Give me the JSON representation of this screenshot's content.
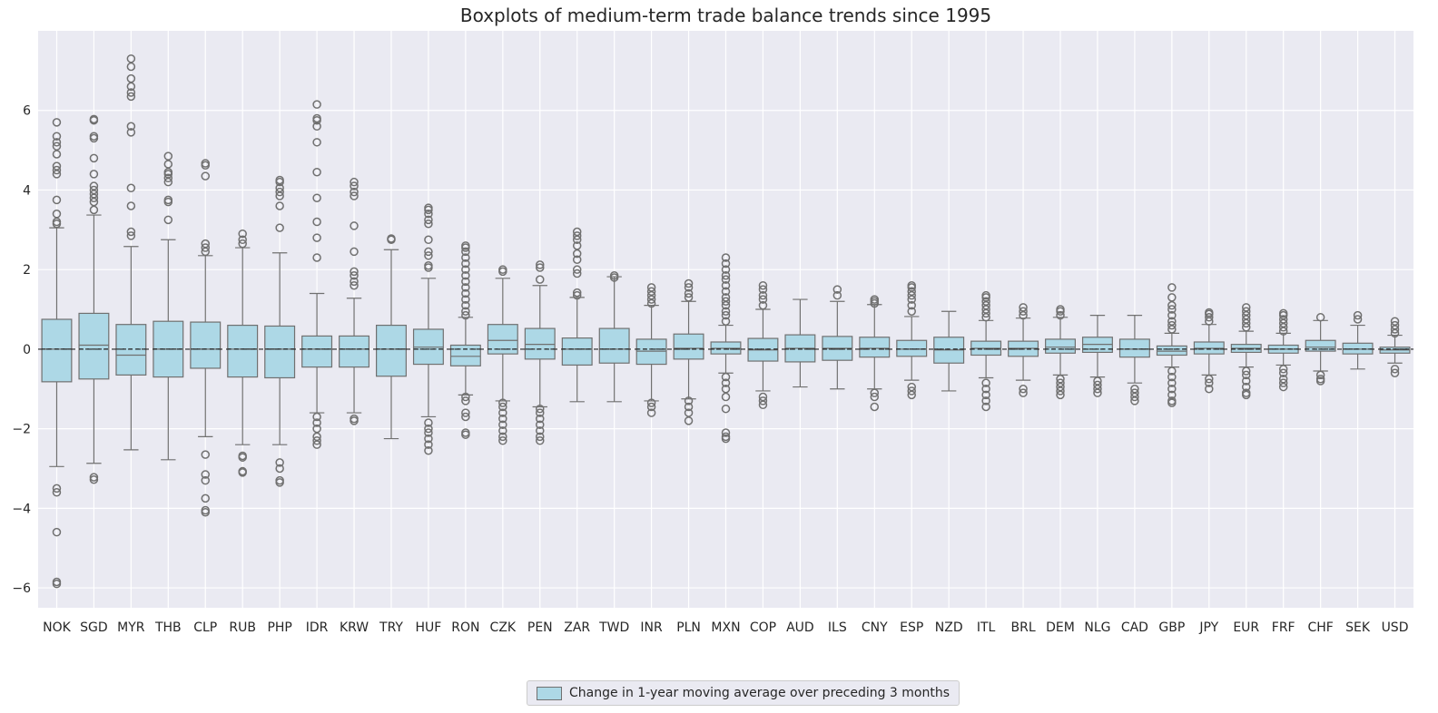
{
  "chart_data": {
    "type": "box",
    "title": "Boxplots of medium-term trade balance trends since 1995",
    "xlabel": "",
    "ylabel": "",
    "ylim": [
      -6.5,
      8.0
    ],
    "yticks": [
      -6,
      -4,
      -2,
      0,
      2,
      4,
      6
    ],
    "ytick_labels": [
      "−6",
      "−4",
      "−2",
      "0",
      "2",
      "4",
      "6"
    ],
    "grid": true,
    "legend_position": "bottom-center",
    "reference_line": 0,
    "colors": {
      "background": "#eaeaf2",
      "box_fill": "#add8e6",
      "box_edge": "#707070",
      "grid": "#ffffff",
      "text": "#262626"
    },
    "series_name": "Change in 1-year moving average over preceding 3 months",
    "categories": [
      "NOK",
      "SGD",
      "MYR",
      "THB",
      "CLP",
      "RUB",
      "PHP",
      "IDR",
      "KRW",
      "TRY",
      "HUF",
      "RON",
      "CZK",
      "PEN",
      "ZAR",
      "TWD",
      "INR",
      "PLN",
      "MXN",
      "COP",
      "AUD",
      "ILS",
      "CNY",
      "ESP",
      "NZD",
      "ITL",
      "BRL",
      "DEM",
      "NLG",
      "CAD",
      "GBP",
      "JPY",
      "EUR",
      "FRF",
      "CHF",
      "SEK",
      "USD"
    ],
    "boxes": [
      {
        "q1": -0.82,
        "median": 0.0,
        "q3": 0.75,
        "mean": 0.0,
        "whislo": -2.95,
        "whishi": 3.05,
        "fliers": [
          3.15,
          3.2,
          3.4,
          3.75,
          4.4,
          4.5,
          4.6,
          4.9,
          5.1,
          5.2,
          5.35,
          5.7,
          -3.5,
          -3.6,
          -4.6,
          -5.85,
          -5.9
        ]
      },
      {
        "q1": -0.75,
        "median": 0.1,
        "q3": 0.9,
        "mean": 0.0,
        "whislo": -2.87,
        "whishi": 3.37,
        "fliers": [
          3.5,
          3.7,
          3.8,
          3.9,
          4.0,
          4.1,
          4.4,
          4.8,
          5.3,
          5.35,
          5.75,
          5.78,
          -3.22,
          -3.28
        ]
      },
      {
        "q1": -0.65,
        "median": -0.15,
        "q3": 0.62,
        "mean": 0.0,
        "whislo": -2.53,
        "whishi": 2.58,
        "fliers": [
          2.85,
          2.95,
          3.6,
          4.05,
          5.45,
          5.6,
          6.35,
          6.45,
          6.6,
          6.8,
          7.1,
          7.3
        ]
      },
      {
        "q1": -0.7,
        "median": 0.0,
        "q3": 0.7,
        "mean": 0.0,
        "whislo": -2.78,
        "whishi": 2.75,
        "fliers": [
          3.25,
          3.7,
          3.75,
          4.2,
          4.3,
          4.4,
          4.45,
          4.65,
          4.85
        ]
      },
      {
        "q1": -0.48,
        "median": 0.0,
        "q3": 0.68,
        "mean": 0.0,
        "whislo": -2.2,
        "whishi": 2.35,
        "fliers": [
          2.45,
          2.55,
          2.65,
          4.35,
          4.62,
          4.67,
          -2.65,
          -3.15,
          -3.3,
          -3.75,
          -4.05,
          -4.1
        ]
      },
      {
        "q1": -0.7,
        "median": 0.0,
        "q3": 0.6,
        "mean": 0.0,
        "whislo": -2.4,
        "whishi": 2.55,
        "fliers": [
          2.65,
          2.75,
          2.9,
          -2.68,
          -2.72,
          -3.07,
          -3.1
        ]
      },
      {
        "q1": -0.72,
        "median": 0.0,
        "q3": 0.58,
        "mean": 0.0,
        "whislo": -2.4,
        "whishi": 2.42,
        "fliers": [
          3.05,
          3.6,
          3.85,
          3.95,
          4.05,
          4.2,
          4.25,
          -2.85,
          -3.0,
          -3.3,
          -3.35
        ]
      },
      {
        "q1": -0.45,
        "median": 0.0,
        "q3": 0.33,
        "mean": 0.0,
        "whislo": -1.6,
        "whishi": 1.4,
        "fliers": [
          2.3,
          2.8,
          3.2,
          3.8,
          4.45,
          5.2,
          5.6,
          5.75,
          5.8,
          6.15,
          -1.7,
          -1.85,
          -2.0,
          -2.2,
          -2.3,
          -2.4
        ]
      },
      {
        "q1": -0.45,
        "median": 0.0,
        "q3": 0.33,
        "mean": 0.0,
        "whislo": -1.6,
        "whishi": 1.28,
        "fliers": [
          1.6,
          1.7,
          1.85,
          1.95,
          2.45,
          3.1,
          3.85,
          3.95,
          4.1,
          4.2,
          -1.75,
          -1.8
        ]
      },
      {
        "q1": -0.68,
        "median": 0.0,
        "q3": 0.6,
        "mean": 0.0,
        "whislo": -2.25,
        "whishi": 2.5,
        "fliers": [
          2.75,
          2.78
        ]
      },
      {
        "q1": -0.38,
        "median": 0.05,
        "q3": 0.5,
        "mean": 0.0,
        "whislo": -1.7,
        "whishi": 1.78,
        "fliers": [
          2.05,
          2.1,
          2.35,
          2.45,
          2.75,
          3.15,
          3.25,
          3.4,
          3.5,
          3.55,
          -1.85,
          -2.0,
          -2.1,
          -2.25,
          -2.4,
          -2.55
        ]
      },
      {
        "q1": -0.42,
        "median": -0.18,
        "q3": 0.1,
        "mean": 0.0,
        "whislo": -1.15,
        "whishi": 0.8,
        "fliers": [
          0.85,
          0.95,
          1.1,
          1.25,
          1.4,
          1.55,
          1.7,
          1.85,
          2.0,
          2.15,
          2.3,
          2.45,
          2.55,
          2.6,
          -1.2,
          -1.3,
          -1.6,
          -1.7,
          -2.1,
          -2.15
        ]
      },
      {
        "q1": -0.12,
        "median": 0.22,
        "q3": 0.62,
        "mean": 0.0,
        "whislo": -1.3,
        "whishi": 1.78,
        "fliers": [
          1.95,
          2.0,
          -1.35,
          -1.45,
          -1.6,
          -1.75,
          -1.9,
          -2.05,
          -2.2,
          -2.3
        ]
      },
      {
        "q1": -0.25,
        "median": 0.12,
        "q3": 0.52,
        "mean": 0.0,
        "whislo": -1.45,
        "whishi": 1.6,
        "fliers": [
          1.75,
          2.05,
          2.12,
          -1.5,
          -1.6,
          -1.75,
          -1.9,
          -2.05,
          -2.2,
          -2.3
        ]
      },
      {
        "q1": -0.4,
        "median": 0.0,
        "q3": 0.28,
        "mean": 0.0,
        "whislo": -1.32,
        "whishi": 1.3,
        "fliers": [
          1.35,
          1.42,
          1.9,
          2.0,
          2.25,
          2.4,
          2.6,
          2.75,
          2.85,
          2.95
        ]
      },
      {
        "q1": -0.35,
        "median": 0.0,
        "q3": 0.52,
        "mean": 0.0,
        "whislo": -1.32,
        "whishi": 1.82,
        "fliers": [
          1.8,
          1.85
        ]
      },
      {
        "q1": -0.38,
        "median": -0.05,
        "q3": 0.25,
        "mean": 0.0,
        "whislo": -1.3,
        "whishi": 1.1,
        "fliers": [
          1.15,
          1.25,
          1.35,
          1.45,
          1.55,
          -1.35,
          -1.45,
          -1.6
        ]
      },
      {
        "q1": -0.25,
        "median": 0.02,
        "q3": 0.38,
        "mean": 0.0,
        "whislo": -1.25,
        "whishi": 1.2,
        "fliers": [
          1.3,
          1.4,
          1.55,
          1.65,
          -1.3,
          -1.45,
          -1.6,
          -1.8
        ]
      },
      {
        "q1": -0.12,
        "median": 0.02,
        "q3": 0.18,
        "mean": 0.0,
        "whislo": -0.6,
        "whishi": 0.6,
        "fliers": [
          0.7,
          0.85,
          0.95,
          1.1,
          1.2,
          1.3,
          1.45,
          1.6,
          1.75,
          1.85,
          2.0,
          2.15,
          2.3,
          -0.7,
          -0.85,
          -1.0,
          -1.2,
          -1.5,
          -2.1,
          -2.2,
          -2.25
        ]
      },
      {
        "q1": -0.3,
        "median": -0.02,
        "q3": 0.27,
        "mean": 0.0,
        "whislo": -1.05,
        "whishi": 1.0,
        "fliers": [
          1.1,
          1.25,
          1.35,
          1.5,
          1.6,
          -1.2,
          -1.3,
          -1.4
        ]
      },
      {
        "q1": -0.32,
        "median": 0.02,
        "q3": 0.36,
        "mean": 0.0,
        "whislo": -0.95,
        "whishi": 1.25,
        "fliers": []
      },
      {
        "q1": -0.28,
        "median": 0.02,
        "q3": 0.32,
        "mean": 0.0,
        "whislo": -1.0,
        "whishi": 1.2,
        "fliers": [
          1.35,
          1.5
        ]
      },
      {
        "q1": -0.2,
        "median": 0.02,
        "q3": 0.3,
        "mean": 0.0,
        "whislo": -1.0,
        "whishi": 1.12,
        "fliers": [
          1.15,
          1.2,
          1.25,
          -1.1,
          -1.2,
          -1.45
        ]
      },
      {
        "q1": -0.18,
        "median": 0.0,
        "q3": 0.22,
        "mean": 0.0,
        "whislo": -0.78,
        "whishi": 0.82,
        "fliers": [
          0.95,
          1.1,
          1.25,
          1.35,
          1.45,
          1.55,
          1.6,
          -0.95,
          -1.05,
          -1.15
        ]
      },
      {
        "q1": -0.35,
        "median": -0.02,
        "q3": 0.3,
        "mean": 0.0,
        "whislo": -1.05,
        "whishi": 0.95,
        "fliers": []
      },
      {
        "q1": -0.15,
        "median": 0.02,
        "q3": 0.2,
        "mean": 0.0,
        "whislo": -0.72,
        "whishi": 0.72,
        "fliers": [
          0.8,
          0.9,
          1.0,
          1.1,
          1.2,
          1.3,
          1.35,
          -0.85,
          -1.0,
          -1.15,
          -1.3,
          -1.45
        ]
      },
      {
        "q1": -0.18,
        "median": 0.02,
        "q3": 0.2,
        "mean": 0.0,
        "whislo": -0.78,
        "whishi": 0.78,
        "fliers": [
          0.85,
          0.95,
          1.05,
          -1.0,
          -1.1
        ]
      },
      {
        "q1": -0.1,
        "median": 0.05,
        "q3": 0.25,
        "mean": 0.0,
        "whislo": -0.65,
        "whishi": 0.8,
        "fliers": [
          0.85,
          0.95,
          1.0,
          -0.75,
          -0.85,
          -0.95,
          -1.05,
          -1.15
        ]
      },
      {
        "q1": -0.08,
        "median": 0.12,
        "q3": 0.3,
        "mean": 0.0,
        "whislo": -0.7,
        "whishi": 0.85,
        "fliers": [
          -0.8,
          -0.9,
          -1.0,
          -1.1
        ]
      },
      {
        "q1": -0.2,
        "median": 0.0,
        "q3": 0.25,
        "mean": 0.0,
        "whislo": -0.85,
        "whishi": 0.85,
        "fliers": [
          -1.0,
          -1.1,
          -1.2,
          -1.3
        ]
      },
      {
        "q1": -0.15,
        "median": -0.05,
        "q3": 0.08,
        "mean": 0.0,
        "whislo": -0.45,
        "whishi": 0.4,
        "fliers": [
          0.5,
          0.6,
          0.7,
          0.85,
          1.0,
          1.1,
          1.3,
          1.55,
          -0.55,
          -0.7,
          -0.85,
          -1.0,
          -1.15,
          -1.3,
          -1.35
        ]
      },
      {
        "q1": -0.12,
        "median": 0.02,
        "q3": 0.18,
        "mean": 0.0,
        "whislo": -0.65,
        "whishi": 0.62,
        "fliers": [
          0.7,
          0.8,
          0.88,
          0.92,
          -0.75,
          -0.85,
          -1.0
        ]
      },
      {
        "q1": -0.08,
        "median": 0.02,
        "q3": 0.12,
        "mean": 0.0,
        "whislo": -0.45,
        "whishi": 0.45,
        "fliers": [
          0.55,
          0.65,
          0.75,
          0.85,
          0.95,
          1.05,
          -0.55,
          -0.65,
          -0.8,
          -0.95,
          -1.1,
          -1.15
        ]
      },
      {
        "q1": -0.1,
        "median": 0.0,
        "q3": 0.1,
        "mean": 0.0,
        "whislo": -0.4,
        "whishi": 0.4,
        "fliers": [
          0.45,
          0.55,
          0.65,
          0.75,
          0.85,
          0.9,
          -0.5,
          -0.6,
          -0.75,
          -0.85,
          -0.95
        ]
      },
      {
        "q1": -0.05,
        "median": 0.05,
        "q3": 0.22,
        "mean": 0.0,
        "whislo": -0.55,
        "whishi": 0.72,
        "fliers": [
          0.8,
          -0.65,
          -0.75,
          -0.8
        ]
      },
      {
        "q1": -0.12,
        "median": 0.0,
        "q3": 0.15,
        "mean": 0.0,
        "whislo": -0.5,
        "whishi": 0.6,
        "fliers": [
          0.75,
          0.85
        ]
      },
      {
        "q1": -0.1,
        "median": -0.02,
        "q3": 0.05,
        "mean": 0.0,
        "whislo": -0.35,
        "whishi": 0.35,
        "fliers": [
          0.4,
          0.5,
          0.6,
          0.7,
          -0.5,
          -0.6
        ]
      }
    ]
  }
}
